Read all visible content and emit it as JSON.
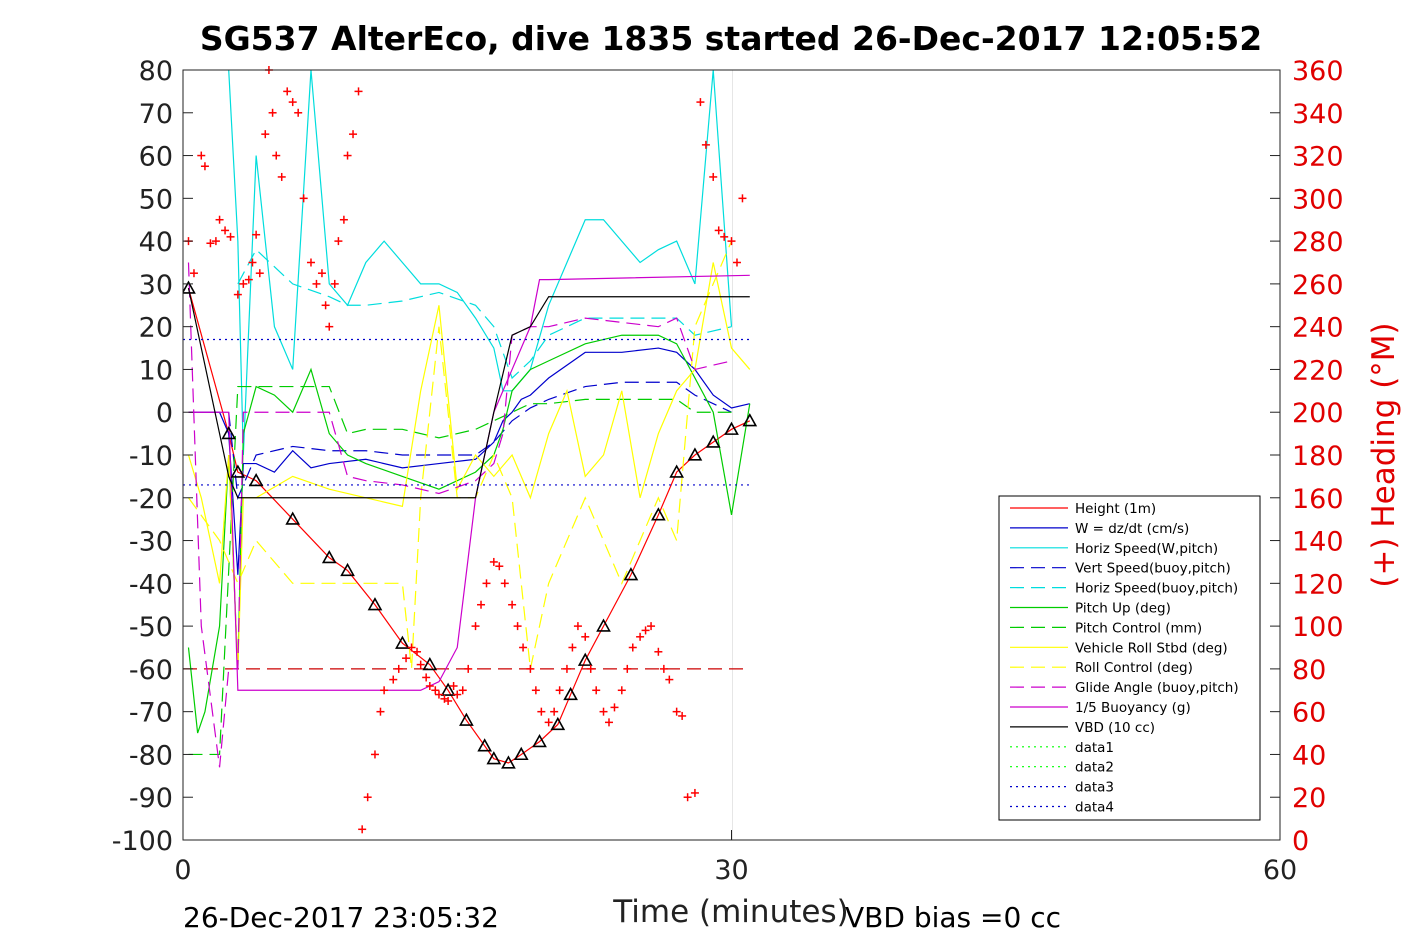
{
  "chart_data": {
    "type": "line",
    "title": "SG537 AlterEco, dive 1835 started 26-Dec-2017 12:05:52",
    "xlabel": "Time (minutes)",
    "ylabel_right": "(+) Heading (°M)",
    "footer_left": "26-Dec-2017 23:05:32",
    "footer_right": "VBD bias =0 cc",
    "xlim": [
      0,
      60
    ],
    "ylim": [
      -100,
      80
    ],
    "ylim_right": [
      0,
      360
    ],
    "x_ticks": [
      0,
      30,
      60
    ],
    "x_tick_labels": [
      "0",
      "30",
      "60"
    ],
    "y_ticks": [
      80,
      70,
      60,
      50,
      40,
      30,
      20,
      10,
      0,
      -10,
      -20,
      -30,
      -40,
      -50,
      -60,
      -70,
      -80,
      -90,
      -100
    ],
    "y_tick_labels": [
      "80",
      "70",
      "60",
      "50",
      "40",
      "30",
      "20",
      "10",
      "0",
      "-10",
      "-20",
      "-30",
      "-40",
      "-50",
      "-60",
      "-70",
      "-80",
      "-90",
      "-100"
    ],
    "y_right_ticks": [
      360,
      340,
      320,
      300,
      280,
      260,
      240,
      220,
      200,
      180,
      160,
      140,
      120,
      100,
      80,
      60,
      40,
      20,
      0
    ],
    "y_right_tick_labels": [
      "360",
      "340",
      "320",
      "300",
      "280",
      "260",
      "240",
      "220",
      "200",
      "180",
      "160",
      "140",
      "120",
      "100",
      "80",
      "60",
      "40",
      "20",
      "0"
    ],
    "grid": "x-only at 30",
    "legend_placement": "bottom-right",
    "series": [
      {
        "name": "Height (1m)",
        "color": "#ff0000",
        "style": "solid",
        "x": [
          0.3,
          2.5,
          3.0,
          4.0,
          6.0,
          8.0,
          9.0,
          10.5,
          12.0,
          13.5,
          14.5,
          15.5,
          16.5,
          17.0,
          17.8,
          18.5,
          19.5,
          20.5,
          21.2,
          22.0,
          23.0,
          24.5,
          26.0,
          27.0,
          28.0,
          29.0,
          30.0,
          31.0
        ],
        "y": [
          29,
          -5,
          -14,
          -16,
          -25,
          -34,
          -37,
          -45,
          -54,
          -59,
          -65,
          -72,
          -78,
          -81,
          -82,
          -80,
          -77,
          -73,
          -66,
          -58,
          -50,
          -38,
          -24,
          -14,
          -10,
          -7,
          -4,
          -2
        ]
      },
      {
        "name": "W = dz/dt (cm/s)",
        "color": "#0000cc",
        "style": "solid",
        "x": [
          0.3,
          1.0,
          2.0,
          2.5,
          3.0,
          3.3,
          4.0,
          5.0,
          6.0,
          7.0,
          8.0,
          10.0,
          12.0,
          14.0,
          16.0,
          17.0,
          17.5,
          18.0,
          18.5,
          19.0,
          20.0,
          22.0,
          24.0,
          26.0,
          27.0,
          28.0,
          29.0,
          30.0,
          31.0
        ],
        "y": [
          0,
          0,
          0,
          -5,
          -38,
          -12,
          -12,
          -14,
          -9,
          -13,
          -12,
          -11,
          -13,
          -12,
          -11,
          -7,
          -2,
          0,
          3,
          4,
          8,
          14,
          14,
          15,
          14,
          10,
          4,
          1,
          2
        ]
      },
      {
        "name": "Horiz Speed(W,pitch)",
        "color": "#00dddd",
        "style": "solid",
        "x": [
          2.5,
          3.0,
          3.3,
          4.0,
          5.0,
          6.0,
          7.0,
          8.0,
          9.0,
          10.0,
          11.0,
          12.0,
          13.0,
          14.0,
          15.0,
          16.0,
          17.0,
          17.5,
          18.0,
          19.0,
          20.0,
          21.0,
          22.0,
          23.0,
          24.0,
          25.0,
          26.0,
          27.0,
          28.0,
          29.0,
          30.0
        ],
        "y": [
          80,
          40,
          -10,
          60,
          20,
          10,
          80,
          30,
          25,
          35,
          40,
          35,
          30,
          30,
          28,
          22,
          15,
          5,
          5,
          10,
          25,
          35,
          45,
          45,
          40,
          35,
          38,
          40,
          30,
          80,
          20
        ]
      },
      {
        "name": "Vert Speed(buoy,pitch)",
        "color": "#0000cc",
        "style": "dashed",
        "x": [
          2.5,
          3.0,
          4.0,
          6.0,
          8.0,
          10.0,
          12.0,
          14.0,
          16.0,
          17.0,
          18.0,
          19.0,
          20.0,
          22.0,
          24.0,
          26.0,
          27.0,
          28.0,
          30.0
        ],
        "y": [
          0,
          -20,
          -10,
          -8,
          -9,
          -9,
          -10,
          -10,
          -10,
          -7,
          -2,
          1,
          3,
          6,
          7,
          7,
          7,
          4,
          0
        ]
      },
      {
        "name": "Horiz Speed(buoy,pitch)",
        "color": "#00dddd",
        "style": "dashed",
        "x": [
          3.0,
          4.0,
          6.0,
          8.0,
          9.0,
          10.0,
          12.0,
          14.0,
          16.0,
          17.0,
          18.0,
          19.0,
          20.0,
          22.0,
          24.0,
          26.0,
          27.0,
          28.0,
          30.0
        ],
        "y": [
          30,
          38,
          30,
          27,
          25,
          25,
          26,
          28,
          25,
          20,
          8,
          12,
          18,
          22,
          22,
          22,
          22,
          18,
          20
        ]
      },
      {
        "name": "Pitch Up (deg)",
        "color": "#00cc00",
        "style": "solid",
        "x": [
          0.3,
          0.8,
          1.2,
          2.0,
          2.5,
          3.0,
          3.3,
          4.0,
          5.0,
          6.0,
          7.0,
          8.0,
          9.0,
          10.0,
          12.0,
          14.0,
          16.0,
          17.0,
          17.5,
          18.0,
          19.0,
          20.0,
          22.0,
          24.0,
          26.0,
          27.0,
          28.0,
          29.0,
          30.0,
          31.0
        ],
        "y": [
          -55,
          -75,
          -70,
          -50,
          -10,
          -60,
          -5,
          6,
          4,
          0,
          10,
          -5,
          -10,
          -12,
          -15,
          -18,
          -14,
          -10,
          -4,
          5,
          10,
          12,
          16,
          18,
          18,
          16,
          8,
          0,
          -24,
          2
        ]
      },
      {
        "name": "Pitch Control (mm)",
        "color": "#00cc00",
        "style": "dashed",
        "x": [
          0.3,
          2.0,
          3.0,
          3.3,
          4.0,
          6.0,
          8.0,
          9.0,
          10.0,
          12.0,
          14.0,
          16.0,
          17.0,
          18.0,
          19.0,
          20.0,
          22.0,
          24.0,
          26.0,
          27.0,
          28.0,
          30.0
        ],
        "y": [
          -80,
          -80,
          6,
          6,
          6,
          6,
          6,
          -5,
          -4,
          -4,
          -6,
          -4,
          -2,
          0,
          2,
          2,
          3,
          3,
          3,
          3,
          0,
          0
        ]
      },
      {
        "name": "Vehicle Roll Stbd (deg)",
        "color": "#ffff00",
        "style": "solid",
        "x": [
          0.3,
          1.0,
          2.0,
          2.5,
          3.0,
          3.3,
          4.0,
          6.0,
          8.0,
          10.0,
          12.0,
          13.0,
          14.0,
          15.0,
          16.0,
          17.0,
          18.0,
          19.0,
          20.0,
          21.0,
          22.0,
          23.0,
          24.0,
          25.0,
          26.0,
          27.0,
          28.0,
          29.0,
          30.0,
          31.0
        ],
        "y": [
          -10,
          -20,
          -40,
          -10,
          -60,
          -20,
          -20,
          -15,
          -18,
          -20,
          -22,
          5,
          25,
          -18,
          -10,
          -15,
          -10,
          -20,
          -5,
          5,
          -15,
          -10,
          5,
          -20,
          -5,
          5,
          10,
          35,
          15,
          10
        ]
      },
      {
        "name": "Roll Control (deg)",
        "color": "#ffff00",
        "style": "dashed",
        "x": [
          0.3,
          2.0,
          3.0,
          4.0,
          6.0,
          8.0,
          10.0,
          12.0,
          12.5,
          13.0,
          14.0,
          15.0,
          16.0,
          17.0,
          18.0,
          19.0,
          20.0,
          22.0,
          24.0,
          26.0,
          27.0,
          28.0,
          30.0
        ],
        "y": [
          -20,
          -30,
          -40,
          -30,
          -40,
          -40,
          -40,
          -40,
          -60,
          -20,
          20,
          -20,
          -20,
          -10,
          -20,
          -60,
          -40,
          -20,
          -40,
          -20,
          -30,
          20,
          40
        ]
      },
      {
        "name": "Glide Angle (buoy,pitch)",
        "color": "#cc00cc",
        "style": "dashed",
        "x": [
          0.3,
          1.0,
          2.0,
          2.5,
          3.0,
          3.3,
          4.0,
          6.0,
          8.0,
          9.0,
          10.0,
          12.0,
          14.0,
          16.0,
          17.0,
          17.5,
          18.0,
          19.0,
          20.0,
          22.0,
          24.0,
          26.0,
          27.0,
          28.0,
          30.0
        ],
        "y": [
          35,
          -50,
          -83,
          -60,
          -60,
          0,
          0,
          0,
          0,
          -15,
          -16,
          -17,
          -19,
          -16,
          -12,
          -5,
          18,
          20,
          20,
          22,
          21,
          20,
          22,
          10,
          12
        ]
      },
      {
        "name": "1/5 Buoyancy (g)",
        "color": "#cc00cc",
        "style": "solid",
        "x": [
          0.3,
          1.0,
          1.5,
          2.0,
          2.5,
          3.0,
          3.3,
          10.0,
          13.0,
          14.0,
          15.0,
          16.0,
          17.0,
          18.0,
          19.0,
          19.5,
          20.0,
          31.0
        ],
        "y": [
          0,
          0,
          0,
          0,
          0,
          -65,
          -65,
          -65,
          -65,
          -63,
          -55,
          -20,
          0,
          10,
          20,
          31,
          31,
          32
        ]
      },
      {
        "name": "VBD (10 cc)",
        "color": "#000000",
        "style": "solid",
        "x": [
          0.3,
          1.0,
          1.5,
          2.0,
          2.5,
          3.0,
          3.3,
          4.0,
          6.0,
          8.0,
          10.0,
          12.0,
          14.0,
          15.0,
          16.0,
          17.0,
          18.0,
          19.0,
          20.0,
          25.0,
          31.0
        ],
        "y": [
          29,
          15,
          5,
          -5,
          -15,
          -20,
          -20,
          -20,
          -20,
          -20,
          -20,
          -20,
          -20,
          -20,
          -20,
          0,
          18,
          20,
          27,
          27,
          27
        ]
      },
      {
        "name": "data1",
        "color": "#00ff00",
        "style": "dotted",
        "x": [],
        "y": []
      },
      {
        "name": "data2",
        "color": "#00ff00",
        "style": "dotted",
        "x": [],
        "y": []
      },
      {
        "name": "data3",
        "color": "#0000cc",
        "style": "dotted",
        "x": [
          0,
          31
        ],
        "y": [
          17,
          17
        ]
      },
      {
        "name": "data4",
        "color": "#0000cc",
        "style": "dotted",
        "x": [
          0,
          31
        ],
        "y": [
          -17,
          -17
        ]
      }
    ],
    "reference_line": {
      "color": "#cc0000",
      "style": "dashed",
      "x": [
        0,
        31
      ],
      "y": [
        -60,
        -60
      ]
    },
    "heading_points": {
      "color": "#ff0000",
      "marker": "+",
      "x": [
        0.3,
        0.6,
        1.0,
        1.2,
        1.5,
        1.8,
        2.0,
        2.3,
        2.6,
        3.0,
        3.3,
        3.6,
        3.8,
        4.0,
        4.2,
        4.5,
        4.7,
        4.9,
        5.1,
        5.4,
        5.7,
        6.0,
        6.3,
        6.6,
        7.0,
        7.3,
        7.6,
        7.8,
        8.0,
        8.3,
        8.5,
        8.8,
        9.0,
        9.3,
        9.6,
        9.8,
        10.1,
        10.5,
        10.8,
        11.0,
        11.5,
        11.8,
        12.2,
        12.5,
        12.8,
        13.0,
        13.3,
        13.5,
        13.8,
        14.0,
        14.3,
        14.5,
        14.8,
        15.0,
        15.3,
        15.6,
        16.0,
        16.3,
        16.6,
        17.0,
        17.3,
        17.6,
        18.0,
        18.3,
        18.6,
        19.0,
        19.3,
        19.6,
        20.0,
        20.3,
        20.6,
        21.0,
        21.3,
        21.6,
        22.0,
        22.3,
        22.6,
        23.0,
        23.3,
        23.6,
        24.0,
        24.3,
        24.6,
        25.0,
        25.3,
        25.6,
        26.0,
        26.3,
        26.6,
        27.0,
        27.3,
        27.6,
        28.0,
        28.3,
        28.6,
        29.0,
        29.3,
        29.6,
        30.0,
        30.3,
        30.6
      ],
      "y": [
        280,
        265,
        320,
        315,
        279,
        280,
        290,
        285,
        282,
        255,
        260,
        262,
        270,
        283,
        265,
        330,
        360,
        340,
        320,
        310,
        350,
        345,
        340,
        300,
        270,
        260,
        265,
        250,
        240,
        260,
        280,
        290,
        320,
        330,
        350,
        5,
        20,
        40,
        60,
        70,
        75,
        80,
        85,
        90,
        88,
        82,
        76,
        72,
        70,
        68,
        66,
        65,
        72,
        68,
        70,
        80,
        100,
        110,
        120,
        130,
        128,
        120,
        110,
        100,
        90,
        80,
        70,
        60,
        55,
        60,
        70,
        80,
        90,
        100,
        95,
        80,
        70,
        60,
        55,
        62,
        70,
        80,
        90,
        95,
        98,
        100,
        88,
        80,
        75,
        60,
        58,
        20,
        22,
        345,
        325,
        310,
        285,
        282,
        280,
        270,
        300
      ]
    }
  }
}
